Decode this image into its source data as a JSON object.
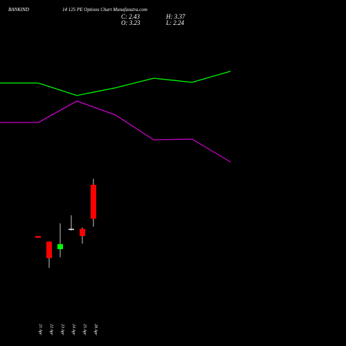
{
  "chart_data": [
    {
      "type": "candlestick",
      "title": "BANKIND",
      "subtitle": "14 125 PE Options  Chart Munafasutra.com",
      "summary": {
        "close": "C: 2.43",
        "high": "H: 3.37",
        "open": "O: 3.23",
        "low": "L: 2.24"
      },
      "categories": [
        "21 Apr",
        "22 Apr",
        "23 Apr",
        "24 Apr",
        "25 Apr",
        "28 Apr"
      ],
      "open": [
        2.02,
        1.89,
        1.71,
        2.19,
        2.19,
        3.23
      ],
      "high": [
        2.02,
        1.89,
        2.32,
        2.51,
        2.22,
        3.37
      ],
      "low": [
        1.98,
        1.27,
        1.52,
        2.15,
        1.84,
        2.24
      ],
      "close": [
        1.98,
        1.5,
        1.83,
        2.19,
        2.02,
        2.43
      ],
      "up_color": "#00ff00",
      "down_color": "#ff0000",
      "flat_color": "#ffffff"
    },
    {
      "type": "line",
      "x": [
        0,
        1,
        2,
        3,
        4,
        5,
        6
      ],
      "ylim": [
        0,
        100
      ],
      "series": [
        {
          "color": "#00ff00",
          "values": [
            76,
            76,
            72.4,
            74.6,
            77.4,
            76.2,
            79.4
          ]
        },
        {
          "color": "#cc00cc",
          "values": [
            64.6,
            64.6,
            70.8,
            66.8,
            59.6,
            59.8,
            53.2
          ]
        }
      ]
    }
  ]
}
